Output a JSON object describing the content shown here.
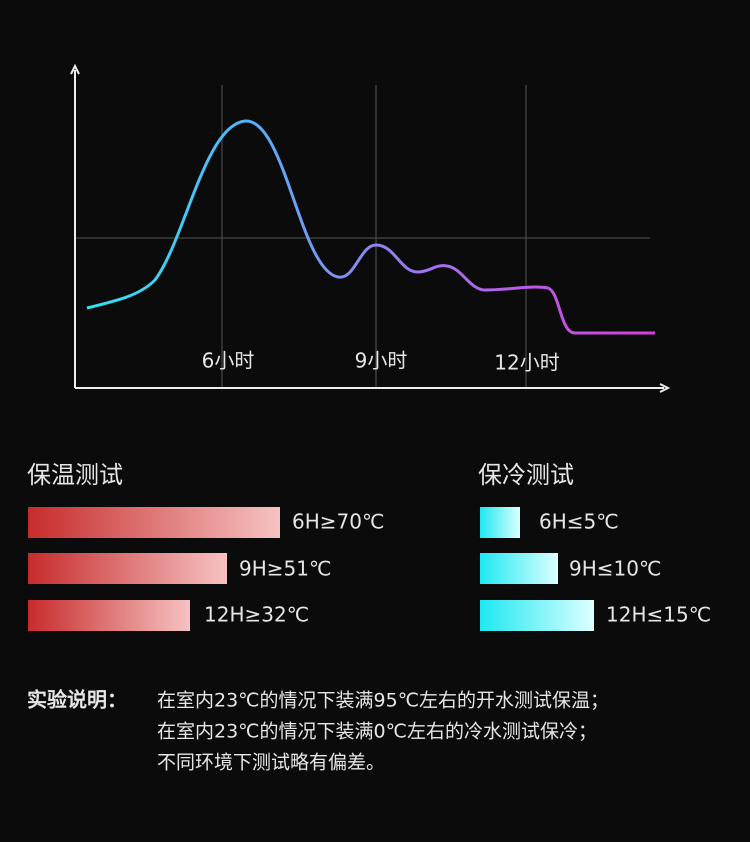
{
  "chart": {
    "x_labels": [
      "6小时",
      "9小时",
      "12小时"
    ]
  },
  "hot_test": {
    "title": "保温测试",
    "items": [
      "6H≥70℃",
      "9H≥51℃",
      "12H≥32℃"
    ]
  },
  "cold_test": {
    "title": "保冷测试",
    "items": [
      "6H≤5℃",
      "9H≤10℃",
      "12H≤15℃"
    ]
  },
  "note": {
    "label": "实验说明：",
    "lines": [
      "在室内23℃的情况下装满95℃左右的开水测试保温；",
      "在室内23℃的情况下装满0℃左右的冷水测试保冷；",
      "不同环境下测试略有偏差。"
    ]
  }
}
